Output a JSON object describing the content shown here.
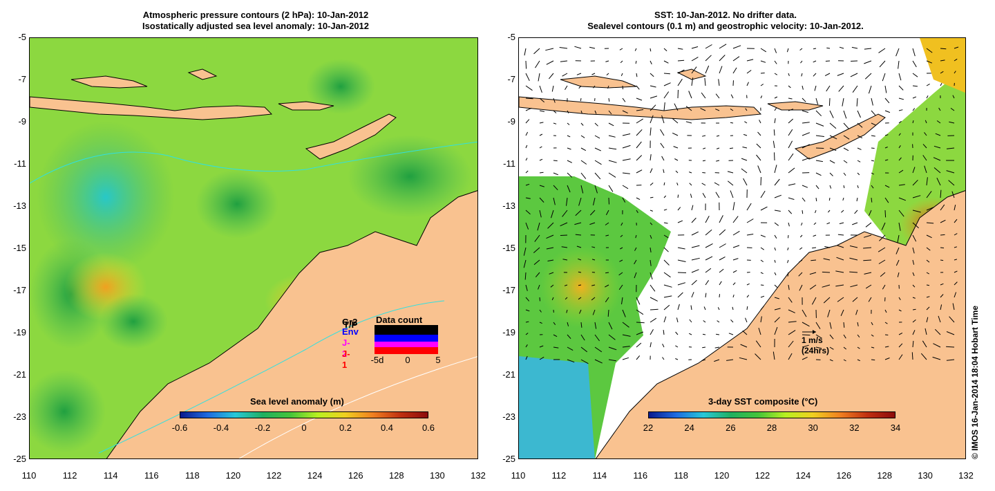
{
  "left_panel": {
    "title_line1": "Atmospheric pressure contours (2 hPa): 10-Jan-2012",
    "title_line2": "Isostatically adjusted sea level anomaly: 10-Jan-2012",
    "colorbar_title": "Sea level anomaly (m)",
    "colorbar_ticks": [
      "-0.6",
      "-0.4",
      "-0.2",
      "0",
      "0.2",
      "0.4",
      "0.6"
    ],
    "legend": {
      "series": [
        {
          "label": "Gr2",
          "color": "#000000"
        },
        {
          "label": "T/P",
          "color": "#000000"
        },
        {
          "label": "Env",
          "color": "#0000ff"
        },
        {
          "label": "J-2",
          "color": "#ff00ff"
        },
        {
          "label": "J-1",
          "color": "#ff0000"
        }
      ],
      "title": "Data count",
      "ticks": [
        "-5d",
        "0",
        "5"
      ]
    }
  },
  "right_panel": {
    "title_line1": "SST: 10-Jan-2012. No drifter data.",
    "title_line2": "Sealevel contours (0.1 m) and geostrophic velocity: 10-Jan-2012.",
    "colorbar_title": "3-day SST composite (°C)",
    "colorbar_ticks": [
      "22",
      "24",
      "26",
      "28",
      "30",
      "32",
      "34"
    ],
    "scale_line1": "1 m/s",
    "scale_line2": "(24hrs)",
    "credit": "© IMOS 16-Jan-2014 18:04 Hobart Time"
  },
  "axes": {
    "y_ticks": [
      "-5",
      "-7",
      "-9",
      "-11",
      "-13",
      "-15",
      "-17",
      "-19",
      "-21",
      "-23",
      "-25"
    ],
    "x_ticks": [
      "110",
      "112",
      "114",
      "116",
      "118",
      "120",
      "122",
      "124",
      "126",
      "128",
      "130",
      "132"
    ]
  },
  "colors": {
    "land": "#f9c290",
    "slaGradient": [
      "#0a1a8c",
      "#1e6be0",
      "#28c8d8",
      "#20b060",
      "#44c43a",
      "#b8f020",
      "#f0d020",
      "#f08020",
      "#c03010",
      "#8c0c0c"
    ],
    "sstGradient": [
      "#0a1a8c",
      "#1e6be0",
      "#28c8d8",
      "#20b060",
      "#44c43a",
      "#b8f020",
      "#f0d020",
      "#f08020",
      "#c03010",
      "#8c0c0c"
    ]
  }
}
